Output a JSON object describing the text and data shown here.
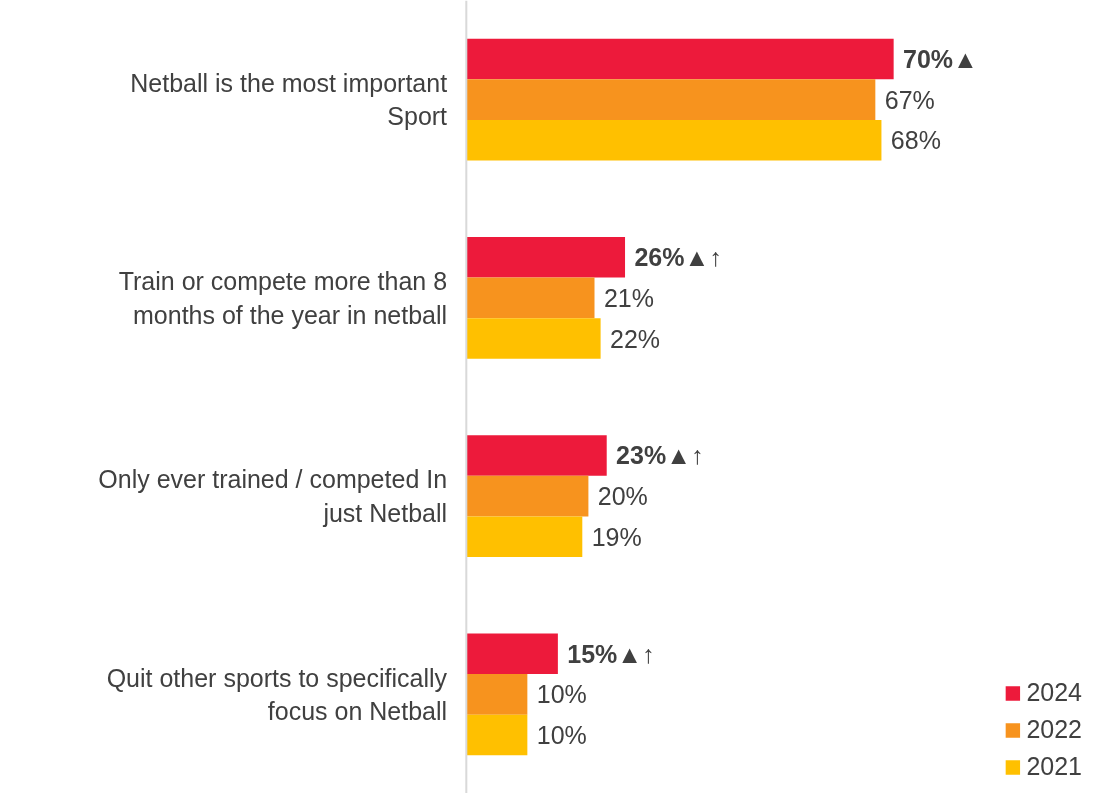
{
  "chart_data": {
    "type": "bar",
    "orientation": "horizontal",
    "categories": [
      "Netball is the most important Sport",
      "Train or compete more than 8 months of the year in netball",
      "Only ever trained / competed In just Netball",
      "Quit other sports to specifically focus on Netball"
    ],
    "series": [
      {
        "name": "2024",
        "color": "#ed1a3b",
        "values": [
          70,
          26,
          23,
          15
        ],
        "value_labels": [
          "70%▲",
          "26%▲↑",
          "23%▲↑",
          "15%▲↑"
        ]
      },
      {
        "name": "2022",
        "color": "#f7931e",
        "values": [
          67,
          21,
          20,
          10
        ],
        "value_labels": [
          "67%",
          "21%",
          "20%",
          "10%"
        ]
      },
      {
        "name": "2021",
        "color": "#ffc000",
        "values": [
          68,
          22,
          19,
          10
        ],
        "value_labels": [
          "68%",
          "22%",
          "19%",
          "10%"
        ]
      }
    ],
    "legend": "bottom right",
    "grid": false
  }
}
